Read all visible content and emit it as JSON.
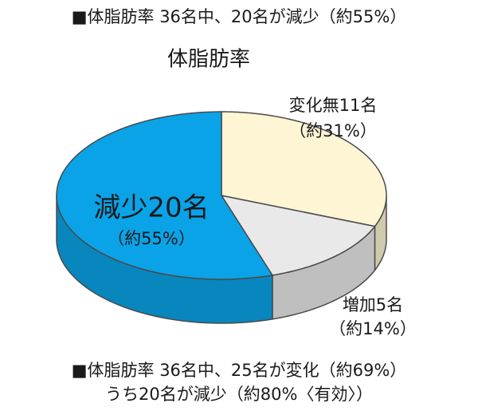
{
  "chart_data": {
    "type": "pie",
    "header": "■体脂肪率 36名中、20名が減少（約55%）",
    "title": "体脂肪率",
    "categories": [
      "変化無11名",
      "増加5名",
      "減少20名"
    ],
    "values": [
      31,
      14,
      55
    ],
    "value_labels": [
      "（約31%）",
      "（約14%）",
      "（約55%）"
    ],
    "colors": [
      "#fdf5d4",
      "#e9e9ea",
      "#0aa3e8"
    ],
    "footnotes": [
      "■体脂肪率 36名中、25名が変化（約69%）",
      "うち20名が減少（約80%〈有効〉）"
    ]
  }
}
